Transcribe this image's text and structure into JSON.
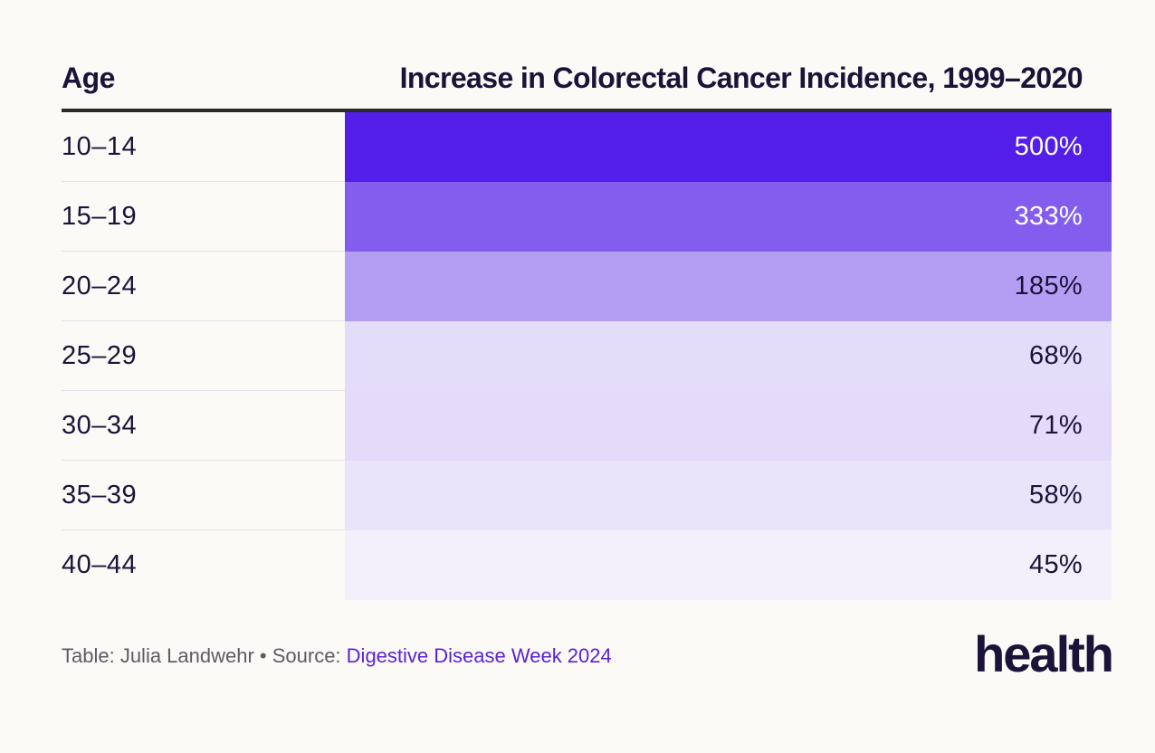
{
  "chart_data": {
    "type": "table",
    "columns": [
      "Age",
      "Increase in Colorectal Cancer Incidence, 1999–2020"
    ],
    "rows": [
      {
        "age": "10–14",
        "value": 500,
        "label": "500%"
      },
      {
        "age": "15–19",
        "value": 333,
        "label": "333%"
      },
      {
        "age": "20–24",
        "value": 185,
        "label": "185%"
      },
      {
        "age": "25–29",
        "value": 68,
        "label": "68%"
      },
      {
        "age": "30–34",
        "value": 71,
        "label": "71%"
      },
      {
        "age": "35–39",
        "value": 58,
        "label": "58%"
      },
      {
        "age": "40–44",
        "value": 45,
        "label": "45%"
      }
    ]
  },
  "footer": {
    "credit": "Table: Julia Landwehr • Source: ",
    "source": "Digestive Disease Week 2024"
  },
  "logo": "health",
  "colors": {
    "background": "#fbfaf6",
    "text": "#1b1338",
    "heat_high": "#521ee8",
    "heat_low": "#f3f0fb",
    "source_link": "#5a22d6"
  }
}
